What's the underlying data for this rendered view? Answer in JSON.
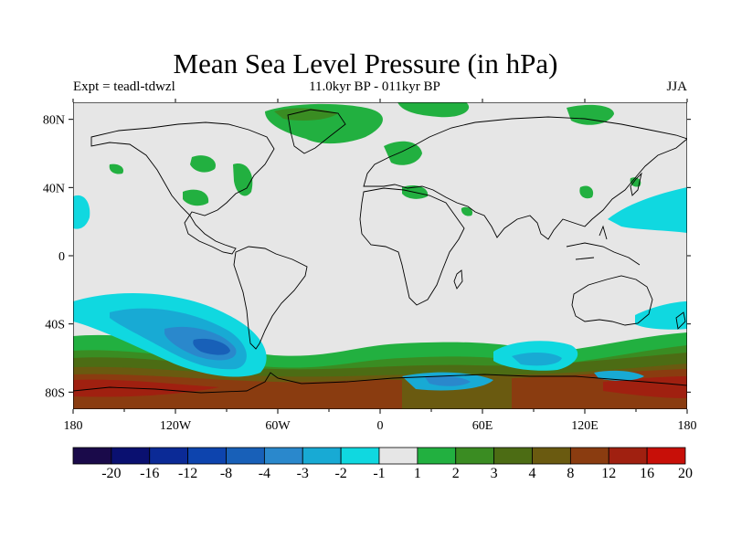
{
  "title": "Mean Sea Level Pressure (in hPa)",
  "subtitle_left": "Expt = teadl-tdwzl",
  "subtitle_center": "11.0kyr BP - 011kyr BP",
  "subtitle_right": "JJA",
  "map": {
    "projection": "cylindrical-equidistant",
    "lon_range": [
      -180,
      180
    ],
    "lat_range": [
      -90,
      90
    ],
    "x_ticks": [
      "180",
      "120W",
      "60W",
      "0",
      "60E",
      "120E",
      "180"
    ],
    "y_ticks": [
      "80N",
      "40N",
      "0",
      "40S",
      "80S"
    ],
    "background_color": "#e6e6e6",
    "coastline_color": "#000000"
  },
  "colorbar": {
    "colors": [
      "#1a0a4a",
      "#0a1070",
      "#0b2a96",
      "#0d44ae",
      "#1860b8",
      "#2a88cc",
      "#18aad4",
      "#10d8e0",
      "#e6e6e6",
      "#22b040",
      "#3a8c22",
      "#4c6c14",
      "#6a5a10",
      "#8a3c10",
      "#a02010",
      "#c80f08"
    ],
    "labels": [
      "-20",
      "-16",
      "-12",
      "-8",
      "-4",
      "-3",
      "-2",
      "-1",
      "1",
      "2",
      "3",
      "4",
      "8",
      "12",
      "16",
      "20"
    ]
  }
}
